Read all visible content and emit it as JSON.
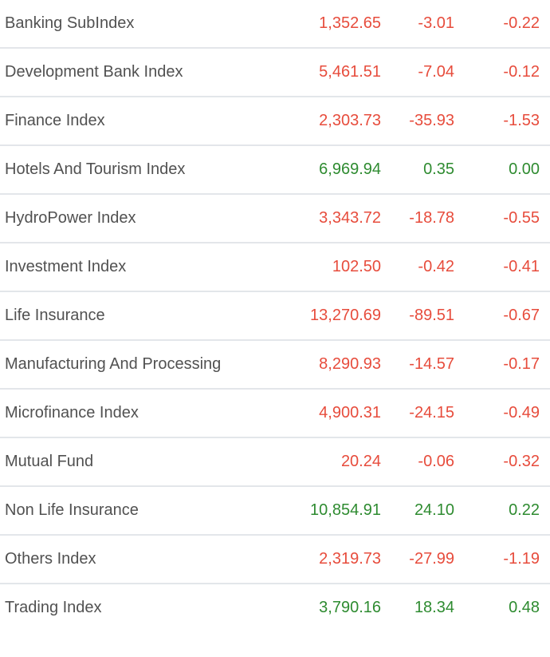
{
  "colors": {
    "up": "#2e8b30",
    "down": "#e74c3c",
    "label_text": "#515151",
    "divider": "#e3e6ea"
  },
  "table": {
    "columns": [
      "index_name",
      "value",
      "change",
      "percent_change"
    ],
    "rows": [
      {
        "label": "Banking SubIndex",
        "value": "1,352.65",
        "change": "-3.01",
        "percent": "-0.22",
        "trend": "down"
      },
      {
        "label": "Development Bank Index",
        "value": "5,461.51",
        "change": "-7.04",
        "percent": "-0.12",
        "trend": "down"
      },
      {
        "label": "Finance Index",
        "value": "2,303.73",
        "change": "-35.93",
        "percent": "-1.53",
        "trend": "down"
      },
      {
        "label": "Hotels And Tourism Index",
        "value": "6,969.94",
        "change": "0.35",
        "percent": "0.00",
        "trend": "up"
      },
      {
        "label": "HydroPower Index",
        "value": "3,343.72",
        "change": "-18.78",
        "percent": "-0.55",
        "trend": "down"
      },
      {
        "label": "Investment Index",
        "value": "102.50",
        "change": "-0.42",
        "percent": "-0.41",
        "trend": "down"
      },
      {
        "label": "Life Insurance",
        "value": "13,270.69",
        "change": "-89.51",
        "percent": "-0.67",
        "trend": "down"
      },
      {
        "label": "Manufacturing And Processing",
        "value": "8,290.93",
        "change": "-14.57",
        "percent": "-0.17",
        "trend": "down"
      },
      {
        "label": "Microfinance Index",
        "value": "4,900.31",
        "change": "-24.15",
        "percent": "-0.49",
        "trend": "down"
      },
      {
        "label": "Mutual Fund",
        "value": "20.24",
        "change": "-0.06",
        "percent": "-0.32",
        "trend": "down"
      },
      {
        "label": "Non Life Insurance",
        "value": "10,854.91",
        "change": "24.10",
        "percent": "0.22",
        "trend": "up"
      },
      {
        "label": "Others Index",
        "value": "2,319.73",
        "change": "-27.99",
        "percent": "-1.19",
        "trend": "down"
      },
      {
        "label": "Trading Index",
        "value": "3,790.16",
        "change": "18.34",
        "percent": "0.48",
        "trend": "up"
      }
    ]
  }
}
